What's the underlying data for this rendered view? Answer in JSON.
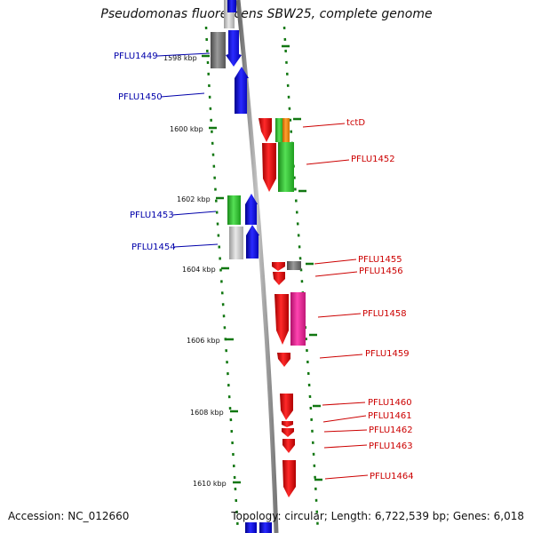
{
  "title": "Pseudomonas fluorescens SBW25, complete genome",
  "footer": {
    "accession": "Accession: NC_012660",
    "summary": "Topology: circular; Length: 6,722,539 bp; Genes: 6,018"
  },
  "scale_ticks": [
    "1598 kbp",
    "1600 kbp",
    "1602 kbp",
    "1604 kbp",
    "1606 kbp",
    "1608 kbp",
    "1610 kbp"
  ],
  "genes_left": [
    {
      "label": "PFLU1449",
      "color": "#0000aa"
    },
    {
      "label": "PFLU1450",
      "color": "#0000aa"
    },
    {
      "label": "PFLU1453",
      "color": "#0000aa"
    },
    {
      "label": "PFLU1454",
      "color": "#0000aa"
    }
  ],
  "genes_right": [
    {
      "label": "tctD",
      "color": "#cc0000"
    },
    {
      "label": "PFLU1452",
      "color": "#cc0000"
    },
    {
      "label": "PFLU1455",
      "color": "#cc0000"
    },
    {
      "label": "PFLU1456",
      "color": "#cc0000"
    },
    {
      "label": "PFLU1458",
      "color": "#cc0000"
    },
    {
      "label": "PFLU1459",
      "color": "#cc0000"
    },
    {
      "label": "PFLU1460",
      "color": "#cc0000"
    },
    {
      "label": "PFLU1461",
      "color": "#cc0000"
    },
    {
      "label": "PFLU1462",
      "color": "#cc0000"
    },
    {
      "label": "PFLU1463",
      "color": "#cc0000"
    },
    {
      "label": "PFLU1464",
      "color": "#cc0000"
    }
  ],
  "feature_colors": {
    "forward_gene": "#0000ee",
    "reverse_gene": "#ee0000",
    "green_feature": "#33cc33",
    "orange_feature": "#ff8800",
    "pink_feature": "#ee2299",
    "gray_feature": "#777777",
    "light_gray_feature": "#c8c8c8",
    "backbone": "#8a8a8a",
    "tick_marks": "#117711"
  }
}
